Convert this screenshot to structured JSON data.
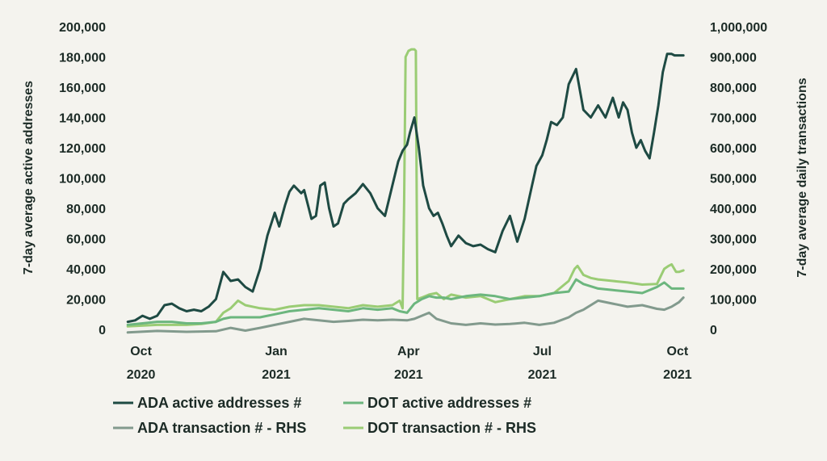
{
  "chart_data": {
    "type": "line",
    "ylabel_left": "7-day average active addresses",
    "ylabel_right": "7-day average daily transactions",
    "ylim_left": [
      0,
      200000
    ],
    "ylim_right": [
      0,
      1000000
    ],
    "yticks_left": [
      "0",
      "20,000",
      "40,000",
      "60,000",
      "80,000",
      "100,000",
      "120,000",
      "140,000",
      "160,000",
      "180,000",
      "200,000"
    ],
    "yticks_right": [
      "0",
      "100,000",
      "200,000",
      "300,000",
      "400,000",
      "500,000",
      "600,000",
      "700,000",
      "800,000",
      "900,000",
      "1,000,000"
    ],
    "xlim_days": [
      -10,
      390
    ],
    "x_day0": "2020-09-22",
    "xticks": [
      {
        "day": 9,
        "line1": "Oct",
        "line2": "2020"
      },
      {
        "day": 101,
        "line1": "Jan",
        "line2": "2021"
      },
      {
        "day": 191,
        "line1": "Apr",
        "line2": "2021"
      },
      {
        "day": 282,
        "line1": "Jul",
        "line2": "2021"
      },
      {
        "day": 374,
        "line1": "Oct",
        "line2": "2021"
      }
    ],
    "series": [
      {
        "name": "ADA active addresses #",
        "axis": "left",
        "color": "#1e4a43",
        "x": [
          0,
          5,
          10,
          15,
          20,
          25,
          30,
          35,
          40,
          45,
          50,
          55,
          60,
          65,
          70,
          75,
          80,
          85,
          90,
          95,
          100,
          103,
          107,
          110,
          113,
          118,
          120,
          125,
          128,
          131,
          134,
          137,
          140,
          143,
          147,
          150,
          155,
          160,
          165,
          170,
          175,
          180,
          184,
          187,
          190,
          192,
          195,
          198,
          201,
          205,
          208,
          211,
          214,
          217,
          220,
          225,
          230,
          235,
          240,
          245,
          250,
          255,
          260,
          265,
          270,
          275,
          278,
          282,
          285,
          288,
          292,
          296,
          300,
          305,
          310,
          315,
          320,
          325,
          330,
          334,
          337,
          340,
          343,
          346,
          349,
          352,
          355,
          358,
          361,
          364,
          367,
          370,
          372,
          375,
          378
        ],
        "values": [
          5000,
          6000,
          9000,
          7000,
          9000,
          16000,
          17000,
          14000,
          12000,
          13000,
          12000,
          15000,
          20000,
          38000,
          32000,
          33000,
          28000,
          25000,
          40000,
          62000,
          77000,
          68000,
          82000,
          91000,
          95000,
          90000,
          92000,
          73000,
          75000,
          95000,
          97000,
          80000,
          68000,
          70000,
          83000,
          86000,
          90000,
          96000,
          90000,
          80000,
          75000,
          95000,
          111000,
          118000,
          122000,
          130000,
          140000,
          120000,
          95000,
          80000,
          75000,
          77000,
          70000,
          62000,
          55000,
          62000,
          57000,
          55000,
          56000,
          53000,
          51000,
          65000,
          75000,
          58000,
          73000,
          95000,
          108000,
          115000,
          125000,
          137000,
          135000,
          140000,
          162000,
          172000,
          145000,
          140000,
          148000,
          140000,
          153000,
          140000,
          150000,
          145000,
          130000,
          120000,
          125000,
          118000,
          113000,
          130000,
          148000,
          170000,
          182000,
          182000,
          181000,
          181000,
          181000
        ]
      },
      {
        "name": "DOT active addresses #",
        "axis": "left",
        "color": "#6cb67e",
        "x": [
          0,
          10,
          20,
          30,
          40,
          50,
          60,
          65,
          70,
          80,
          90,
          100,
          110,
          120,
          130,
          140,
          150,
          160,
          170,
          180,
          185,
          190,
          195,
          200,
          205,
          210,
          215,
          220,
          230,
          240,
          250,
          260,
          270,
          280,
          290,
          300,
          305,
          310,
          320,
          330,
          340,
          350,
          360,
          365,
          370,
          375,
          378
        ],
        "values": [
          3000,
          4000,
          5000,
          5000,
          4000,
          4000,
          5000,
          7000,
          8000,
          8000,
          8000,
          10000,
          12000,
          13000,
          14000,
          13000,
          12000,
          14000,
          13000,
          14000,
          12000,
          11000,
          17000,
          20000,
          22000,
          21000,
          21000,
          20000,
          22000,
          23000,
          22000,
          20000,
          21000,
          22000,
          24000,
          25000,
          33000,
          30000,
          27000,
          26000,
          25000,
          24000,
          28000,
          31000,
          27000,
          27000,
          27000
        ]
      },
      {
        "name": "ADA transaction # - RHS",
        "axis": "right",
        "color": "#829a8d",
        "x": [
          0,
          20,
          40,
          60,
          70,
          80,
          90,
          100,
          110,
          120,
          130,
          140,
          150,
          160,
          170,
          180,
          190,
          195,
          200,
          205,
          210,
          220,
          230,
          240,
          250,
          260,
          270,
          280,
          290,
          300,
          305,
          310,
          320,
          330,
          340,
          350,
          360,
          365,
          370,
          375,
          378
        ],
        "values": [
          -10000,
          -5000,
          -8000,
          -6000,
          5000,
          -4000,
          5000,
          15000,
          25000,
          35000,
          30000,
          25000,
          28000,
          32000,
          30000,
          32000,
          30000,
          35000,
          45000,
          55000,
          35000,
          20000,
          15000,
          20000,
          16000,
          18000,
          22000,
          15000,
          22000,
          40000,
          55000,
          65000,
          95000,
          85000,
          75000,
          80000,
          68000,
          65000,
          75000,
          90000,
          105000
        ]
      },
      {
        "name": "DOT transaction # - RHS",
        "axis": "right",
        "color": "#9acc74",
        "x": [
          0,
          20,
          40,
          50,
          60,
          65,
          70,
          75,
          80,
          90,
          100,
          110,
          120,
          130,
          140,
          150,
          160,
          170,
          180,
          185,
          187,
          188,
          189,
          191,
          193,
          195,
          196,
          197,
          200,
          205,
          210,
          215,
          220,
          230,
          240,
          250,
          260,
          270,
          280,
          290,
          300,
          304,
          306,
          310,
          315,
          320,
          330,
          340,
          350,
          360,
          365,
          368,
          370,
          373,
          375,
          378
        ],
        "values": [
          10000,
          15000,
          15000,
          18000,
          25000,
          55000,
          70000,
          95000,
          80000,
          70000,
          65000,
          75000,
          80000,
          80000,
          75000,
          70000,
          80000,
          75000,
          80000,
          95000,
          70000,
          420000,
          900000,
          920000,
          925000,
          925000,
          920000,
          100000,
          105000,
          115000,
          120000,
          100000,
          115000,
          105000,
          110000,
          90000,
          100000,
          110000,
          110000,
          120000,
          160000,
          200000,
          210000,
          180000,
          170000,
          165000,
          160000,
          155000,
          148000,
          150000,
          200000,
          210000,
          215000,
          190000,
          190000,
          195000
        ]
      }
    ],
    "legend": [
      [
        "ADA active addresses #",
        "DOT active addresses #"
      ],
      [
        "ADA transaction # - RHS",
        "DOT transaction # - RHS"
      ]
    ]
  }
}
